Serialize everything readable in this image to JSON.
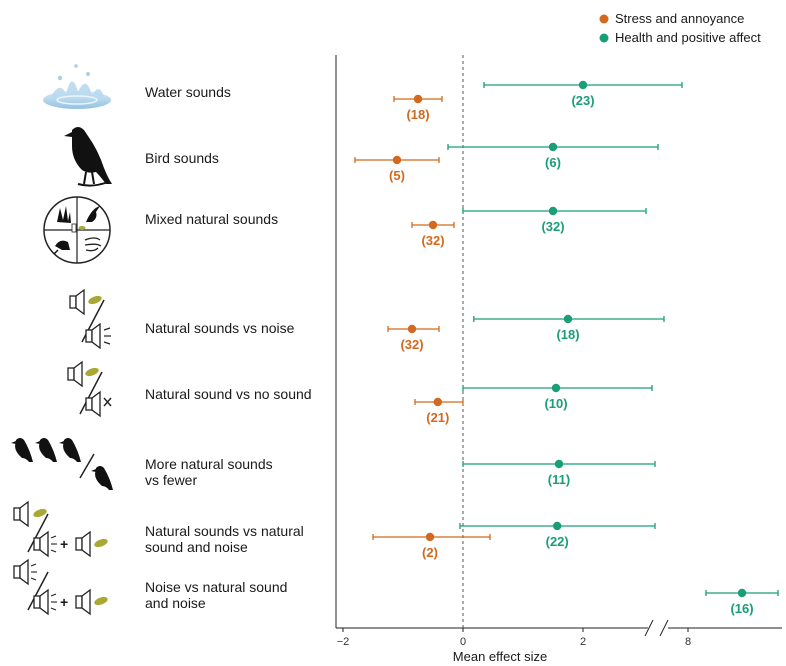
{
  "legend": {
    "items": [
      {
        "label": "Stress and annoyance",
        "color": "#d2691e"
      },
      {
        "label": "Health and positive affect",
        "color": "#1a9e77"
      }
    ]
  },
  "axis": {
    "xlabel": "Mean effect size",
    "ticks": [
      "−2",
      "0",
      "2",
      "8"
    ],
    "break_marker": "//"
  },
  "icons": [
    "water-splash-icon",
    "bird-icon",
    "mixed-nature-icon",
    "speaker-leaf-vs-noise-icon",
    "speaker-leaf-vs-mute-icon",
    "birds-more-vs-fewer-icon",
    "speaker-leaf-vs-noise-plus-leaf-icon",
    "speaker-noise-vs-noise-plus-leaf-icon"
  ],
  "chart_data": {
    "type": "forest",
    "xlabel": "Mean effect size",
    "x_ticks": [
      -2,
      0,
      2,
      8
    ],
    "x_axis_break": true,
    "categories": [
      "Water sounds",
      "Bird sounds",
      "Mixed natural sounds",
      "Natural sounds vs noise",
      "Natural sound vs no sound",
      "More natural sounds vs fewer",
      "Natural sounds vs natural sound and noise",
      "Noise vs natural sound and noise"
    ],
    "category_lines": [
      [
        "Water sounds"
      ],
      [
        "Bird sounds"
      ],
      [
        "Mixed natural sounds"
      ],
      [
        "Natural sounds vs noise"
      ],
      [
        "Natural sound vs no sound"
      ],
      [
        "More natural sounds",
        "vs fewer"
      ],
      [
        "Natural sounds vs natural",
        "sound and noise"
      ],
      [
        "Noise vs natural sound",
        "and noise"
      ]
    ],
    "series": [
      {
        "name": "Stress and annoyance",
        "color": "#d2691e",
        "points": [
          {
            "category": "Water sounds",
            "mean": -0.75,
            "lo": -1.15,
            "hi": -0.35,
            "n": "(18)"
          },
          {
            "category": "Bird sounds",
            "mean": -1.1,
            "lo": -1.8,
            "hi": -0.4,
            "n": "(5)"
          },
          {
            "category": "Mixed natural sounds",
            "mean": -0.5,
            "lo": -0.85,
            "hi": -0.15,
            "n": "(32)"
          },
          {
            "category": "Natural sounds vs noise",
            "mean": -0.85,
            "lo": -1.25,
            "hi": -0.4,
            "n": "(32)"
          },
          {
            "category": "Natural sound vs no sound",
            "mean": -0.42,
            "lo": -0.8,
            "hi": 0.0,
            "n": "(21)"
          },
          {
            "category": "Natural sounds vs natural sound and noise",
            "mean": -0.55,
            "lo": -1.5,
            "hi": 0.45,
            "n": "(2)"
          }
        ]
      },
      {
        "name": "Health and positive affect",
        "color": "#1a9e77",
        "points": [
          {
            "category": "Water sounds",
            "mean": 2.0,
            "lo": 0.35,
            "hi": 3.65,
            "n": "(23)"
          },
          {
            "category": "Bird sounds",
            "mean": 1.5,
            "lo": -0.25,
            "hi": 3.25,
            "n": "(6)"
          },
          {
            "category": "Mixed natural sounds",
            "mean": 1.5,
            "lo": 0.0,
            "hi": 3.05,
            "n": "(32)"
          },
          {
            "category": "Natural sounds vs noise",
            "mean": 1.75,
            "lo": 0.18,
            "hi": 3.35,
            "n": "(18)"
          },
          {
            "category": "Natural sound vs no sound",
            "mean": 1.55,
            "lo": 0.0,
            "hi": 3.15,
            "n": "(10)"
          },
          {
            "category": "More natural sounds vs fewer",
            "mean": 1.6,
            "lo": 0.0,
            "hi": 3.2,
            "n": "(11)"
          },
          {
            "category": "Natural sounds vs natural sound and noise",
            "mean": 1.57,
            "lo": -0.05,
            "hi": 3.2,
            "n": "(22)"
          },
          {
            "category": "Noise vs natural sound and noise",
            "mean": 9.2,
            "lo": 8.4,
            "hi": 10.0,
            "n": "(16)"
          }
        ]
      }
    ]
  }
}
